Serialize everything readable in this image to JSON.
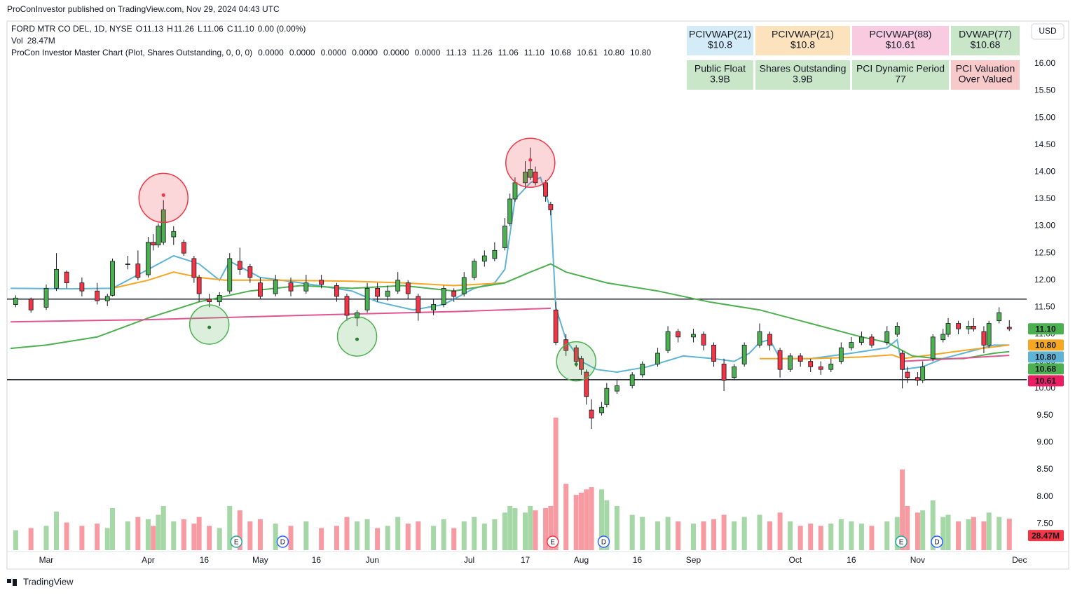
{
  "header": {
    "publisher": "ProConInvestor published on TradingView.com, Nov 29, 2024 04:43 UTC",
    "footer": "TradingView",
    "currency": "USD"
  },
  "legend": {
    "symbol": "FORD MTR CO DEL, 1D, NYSE",
    "ohlc": [
      {
        "key": "O",
        "value": "11.13"
      },
      {
        "key": "H",
        "value": "11.26"
      },
      {
        "key": "L",
        "value": "11.06"
      },
      {
        "key": "C",
        "value": "11.10"
      }
    ],
    "change": "0.00 (0.00%)",
    "vol_label": "Vol",
    "vol_value": "28.47M",
    "indicator": "ProCon Investor Master Chart (Plot, Shares Outstanding, 0, 0, 0)",
    "indicator_values": [
      {
        "text": "0.0000",
        "color": "#f2d23c"
      },
      {
        "text": "0.0000",
        "color": "#f5a623"
      },
      {
        "text": "0.0000",
        "color": "#f23645"
      },
      {
        "text": "0.0000",
        "color": "#f2d23c"
      },
      {
        "text": "0.0000",
        "color": "#f5a623"
      },
      {
        "text": "0.0000",
        "color": "#4caf50"
      },
      {
        "text": "11.13",
        "color": "#4caf50"
      },
      {
        "text": "11.26",
        "color": "#4caf50"
      },
      {
        "text": "11.06",
        "color": "#4caf50"
      },
      {
        "text": "11.10",
        "color": "#4caf50"
      },
      {
        "text": "10.68",
        "color": "#4caf50"
      },
      {
        "text": "10.61",
        "color": "#e91e63"
      },
      {
        "text": "10.80",
        "color": "#f5a623"
      },
      {
        "text": "10.80",
        "color": "#5fb4d6"
      }
    ]
  },
  "info_table": {
    "rows": [
      [
        {
          "title": "PCIVWAP(21)",
          "value": "$10.8",
          "color": "#d4ecf7"
        },
        {
          "title": "PCIVWAP(21)",
          "value": "$10.8",
          "color": "#fde3bd"
        },
        {
          "title": "PCIVWAP(88)",
          "value": "$10.61",
          "color": "#f8cbe0"
        },
        {
          "title": "DVWAP(77)",
          "value": "$10.68",
          "color": "#c9e6c9"
        }
      ],
      [
        {
          "title": "Public Float",
          "value": "3.9B",
          "color": "#c9e6c9"
        },
        {
          "title": "Shares Outstanding",
          "value": "3.9B",
          "color": "#c9e6c9"
        },
        {
          "title": "PCI Dynamic Period",
          "value": "77",
          "color": "#c9e6c9"
        },
        {
          "title": "PCI Valuation",
          "value": "Over Valued",
          "color": "#f8c9c9"
        }
      ]
    ]
  },
  "chart_data": {
    "type": "candlestick",
    "x": [
      -6,
      -3,
      0,
      2,
      4,
      7,
      10,
      12,
      13,
      16,
      18,
      20,
      21,
      22,
      23,
      25,
      27,
      29,
      30,
      32,
      34,
      36,
      38,
      40,
      42,
      45,
      48,
      51,
      54,
      57,
      59,
      61,
      63,
      65,
      67,
      69,
      71,
      73,
      76,
      78,
      80,
      82,
      84,
      86,
      88,
      90,
      91,
      92,
      94,
      95,
      96,
      98,
      99,
      100,
      102,
      104,
      105,
      106,
      107,
      109,
      110,
      112,
      115,
      117,
      120,
      122,
      124,
      127,
      129,
      131,
      133,
      135,
      137,
      140,
      142,
      144,
      146,
      148,
      150,
      152,
      154,
      156,
      158,
      160,
      162,
      165,
      167,
      168,
      169,
      171,
      172,
      174,
      176,
      177,
      179,
      181,
      182,
      184,
      185,
      187,
      189
    ],
    "open": [
      11.55,
      11.65,
      11.5,
      11.85,
      12.15,
      11.95,
      11.8,
      11.62,
      11.72,
      12.3,
      12.3,
      12.1,
      12.7,
      12.65,
      12.7,
      12.8,
      12.7,
      12.4,
      12.05,
      11.65,
      11.6,
      11.8,
      12.35,
      12.25,
      11.95,
      11.75,
      11.95,
      11.8,
      12.0,
      11.9,
      11.7,
      11.3,
      11.45,
      11.85,
      11.7,
      11.8,
      11.95,
      11.7,
      11.45,
      11.55,
      11.8,
      11.75,
      12.05,
      12.35,
      12.4,
      12.6,
      13.05,
      13.5,
      13.8,
      13.9,
      14.0,
      13.8,
      13.4,
      11.45,
      10.9,
      10.75,
      10.55,
      10.3,
      9.6,
      9.55,
      9.7,
      9.95,
      10.05,
      10.25,
      10.45,
      10.7,
      11.05,
      10.95,
      11.0,
      10.8,
      10.45,
      10.2,
      10.45,
      10.8,
      11.0,
      10.7,
      10.35,
      10.6,
      10.5,
      10.4,
      10.35,
      10.5,
      10.75,
      10.85,
      10.95,
      10.85,
      11.0,
      10.65,
      10.3,
      10.2,
      10.15,
      10.55,
      10.9,
      11.0,
      11.2,
      11.1,
      11.15,
      11.05,
      10.8,
      11.25,
      11.13
    ],
    "high": [
      11.72,
      11.68,
      11.92,
      12.5,
      12.18,
      12.05,
      11.95,
      11.75,
      12.4,
      12.45,
      12.55,
      12.8,
      12.85,
      13.05,
      13.48,
      13.0,
      12.75,
      12.45,
      12.1,
      11.75,
      11.78,
      12.5,
      12.6,
      12.3,
      12.05,
      12.1,
      12.05,
      12.1,
      12.1,
      11.95,
      11.75,
      11.45,
      11.95,
      11.95,
      11.9,
      12.15,
      12.0,
      11.75,
      11.65,
      11.9,
      11.85,
      12.15,
      12.4,
      12.55,
      12.7,
      13.15,
      13.6,
      13.9,
      14.2,
      14.45,
      14.1,
      13.85,
      13.45,
      11.6,
      11.0,
      10.8,
      10.6,
      10.35,
      9.8,
      9.75,
      10.1,
      10.15,
      10.3,
      10.5,
      10.75,
      11.15,
      11.1,
      11.1,
      11.05,
      10.85,
      10.55,
      10.45,
      10.85,
      11.2,
      11.05,
      10.75,
      10.65,
      10.65,
      10.55,
      10.5,
      10.55,
      10.85,
      10.95,
      11.05,
      11.0,
      11.15,
      11.22,
      10.7,
      10.4,
      10.3,
      10.5,
      11.0,
      11.1,
      11.3,
      11.25,
      11.25,
      11.3,
      11.15,
      11.25,
      11.5,
      11.26
    ],
    "low": [
      11.5,
      11.4,
      11.45,
      11.8,
      11.85,
      11.7,
      11.55,
      11.52,
      11.7,
      12.2,
      12.0,
      12.05,
      12.55,
      12.6,
      12.65,
      12.65,
      12.45,
      11.95,
      11.6,
      11.5,
      11.52,
      11.75,
      12.1,
      11.95,
      11.65,
      11.7,
      11.7,
      11.75,
      11.85,
      11.6,
      11.25,
      11.15,
      11.4,
      11.6,
      11.62,
      11.75,
      11.65,
      11.25,
      11.35,
      11.5,
      11.6,
      11.7,
      12.0,
      12.25,
      12.35,
      12.55,
      13.0,
      13.45,
      13.7,
      13.85,
      13.75,
      13.45,
      13.2,
      10.8,
      10.6,
      10.4,
      10.25,
      9.7,
      9.25,
      9.5,
      9.65,
      9.9,
      10.0,
      10.2,
      10.4,
      10.65,
      10.85,
      10.85,
      10.7,
      10.4,
      9.95,
      10.15,
      10.4,
      10.75,
      10.7,
      10.2,
      10.3,
      10.4,
      10.3,
      10.25,
      10.3,
      10.45,
      10.7,
      10.8,
      10.75,
      10.8,
      10.95,
      10.0,
      10.1,
      10.05,
      10.1,
      10.5,
      10.85,
      10.95,
      11.0,
      11.0,
      11.05,
      10.65,
      10.75,
      11.2,
      11.06
    ],
    "close": [
      11.67,
      11.45,
      11.85,
      12.2,
      11.95,
      11.8,
      11.62,
      11.7,
      12.35,
      12.3,
      12.05,
      12.7,
      12.65,
      13.0,
      13.3,
      12.9,
      12.5,
      12.05,
      11.75,
      11.6,
      11.72,
      12.4,
      12.2,
      12.05,
      11.7,
      12.0,
      11.8,
      11.95,
      11.92,
      11.7,
      11.35,
      11.4,
      11.85,
      11.7,
      11.8,
      12.0,
      11.75,
      11.4,
      11.55,
      11.85,
      11.7,
      12.05,
      12.35,
      12.45,
      12.55,
      13.0,
      13.5,
      13.8,
      14.0,
      14.05,
      13.8,
      13.55,
      13.3,
      10.85,
      10.7,
      10.5,
      10.35,
      9.85,
      9.45,
      9.65,
      10.0,
      10.05,
      10.25,
      10.45,
      10.65,
      11.05,
      10.95,
      11.0,
      10.8,
      10.5,
      10.15,
      10.4,
      10.8,
      11.05,
      10.8,
      10.35,
      10.6,
      10.5,
      10.4,
      10.35,
      10.45,
      10.75,
      10.85,
      10.95,
      10.8,
      11.05,
      11.15,
      10.35,
      10.2,
      10.15,
      10.4,
      10.95,
      11.0,
      11.2,
      11.1,
      11.15,
      11.1,
      10.8,
      11.2,
      11.4,
      11.1
    ],
    "volume": [
      18,
      20,
      22,
      35,
      25,
      22,
      24,
      20,
      38,
      26,
      30,
      28,
      22,
      32,
      40,
      26,
      28,
      24,
      30,
      22,
      20,
      40,
      36,
      26,
      28,
      24,
      22,
      26,
      20,
      22,
      30,
      26,
      28,
      20,
      22,
      30,
      24,
      26,
      22,
      28,
      20,
      26,
      30,
      24,
      28,
      34,
      40,
      38,
      34,
      40,
      36,
      38,
      40,
      120,
      60,
      50,
      52,
      55,
      57,
      55,
      45,
      40,
      32,
      30,
      26,
      30,
      26,
      24,
      26,
      28,
      32,
      26,
      30,
      32,
      26,
      34,
      26,
      22,
      24,
      22,
      24,
      28,
      26,
      24,
      22,
      26,
      30,
      73,
      40,
      34,
      36,
      45,
      30,
      32,
      26,
      28,
      30,
      26,
      34,
      30,
      28.47
    ],
    "xlim": [
      -7.7,
      192.4
    ],
    "ylim": [
      7.0,
      16.8
    ],
    "y2lim": [
      0,
      130
    ],
    "yticks": [
      {
        "value": 16,
        "label": "16.00"
      },
      {
        "value": 15.5,
        "label": "15.50"
      },
      {
        "value": 15,
        "label": "15.00"
      },
      {
        "value": 14.5,
        "label": "14.50"
      },
      {
        "value": 14,
        "label": "14.00"
      },
      {
        "value": 13.5,
        "label": "13.50"
      },
      {
        "value": 13,
        "label": "13.00"
      },
      {
        "value": 12.5,
        "label": "12.50"
      },
      {
        "value": 12,
        "label": "12.00"
      },
      {
        "value": 11.5,
        "label": "11.50"
      },
      {
        "value": 11,
        "label": "11.00"
      },
      {
        "value": 10.5,
        "label": "10.50"
      },
      {
        "value": 10,
        "label": "10.00"
      },
      {
        "value": 9.5,
        "label": "9.50"
      },
      {
        "value": 9,
        "label": "9.00"
      },
      {
        "value": 8.5,
        "label": "8.50"
      },
      {
        "value": 8,
        "label": "8.00"
      },
      {
        "value": 7.5,
        "label": "7.50"
      }
    ],
    "xticks": [
      {
        "value": 0,
        "label": "Mar"
      },
      {
        "value": 20,
        "label": "Apr"
      },
      {
        "value": 31,
        "label": "16"
      },
      {
        "value": 42,
        "label": "May"
      },
      {
        "value": 53,
        "label": "16"
      },
      {
        "value": 64,
        "label": "Jun"
      },
      {
        "value": 83,
        "label": "Jul"
      },
      {
        "value": 94,
        "label": "17"
      },
      {
        "value": 105,
        "label": "Aug"
      },
      {
        "value": 116,
        "label": "16"
      },
      {
        "value": 127,
        "label": "Sep"
      },
      {
        "value": 147,
        "label": "Oct"
      },
      {
        "value": 158,
        "label": "16"
      },
      {
        "value": 171,
        "label": "Nov"
      },
      {
        "value": 191,
        "label": "Dec"
      }
    ],
    "up_color": "#4caf50",
    "down_color": "#f23645",
    "series": [
      {
        "color": "#5fb4d6",
        "x": [
          -7,
          5,
          13,
          18,
          25,
          30,
          34,
          36,
          42,
          50,
          60,
          65,
          72,
          78,
          84,
          88,
          90,
          92,
          95,
          97,
          99,
          100,
          102,
          105,
          108,
          112,
          118,
          125,
          131,
          135,
          138,
          140,
          142,
          144,
          150,
          158,
          165,
          167,
          168,
          172,
          176,
          182,
          186,
          189
        ],
        "values": [
          11.85,
          11.84,
          11.85,
          12.1,
          12.45,
          12.3,
          12.0,
          12.35,
          12.05,
          11.95,
          11.8,
          11.6,
          11.45,
          11.55,
          11.85,
          11.95,
          12.2,
          13.5,
          13.8,
          13.9,
          13.3,
          11.5,
          10.9,
          10.5,
          10.35,
          10.3,
          10.4,
          10.6,
          10.55,
          10.5,
          10.65,
          10.85,
          10.9,
          10.55,
          10.55,
          10.65,
          10.75,
          10.9,
          10.35,
          10.4,
          10.55,
          10.7,
          10.8,
          10.8
        ]
      },
      {
        "color": "#f5a623",
        "x": [
          13,
          20,
          25,
          30,
          35,
          45,
          60,
          70,
          80,
          90,
          91,
          140,
          150,
          160,
          166,
          168,
          172,
          180,
          189
        ],
        "values": [
          11.85,
          12.0,
          12.15,
          12.05,
          12.0,
          12.0,
          11.98,
          11.95,
          11.9,
          11.95,
          null,
          10.55,
          10.55,
          10.58,
          10.62,
          10.55,
          10.6,
          10.7,
          10.8
        ]
      },
      {
        "color": "#4caf50",
        "x": [
          -7,
          0,
          10,
          20,
          30,
          40,
          50,
          60,
          70,
          80,
          90,
          95,
          99,
          102,
          110,
          120,
          130,
          140,
          150,
          160,
          165,
          170,
          175,
          180,
          186,
          189
        ],
        "values": [
          10.74,
          10.8,
          10.95,
          11.3,
          11.6,
          11.8,
          11.9,
          11.85,
          11.9,
          11.8,
          11.95,
          12.15,
          12.3,
          12.15,
          11.95,
          11.8,
          11.6,
          11.45,
          11.2,
          10.95,
          10.85,
          10.6,
          10.55,
          10.55,
          10.65,
          10.68
        ]
      },
      {
        "color": "#e05591",
        "x": [
          -7,
          20,
          50,
          80,
          99,
          100,
          168,
          180,
          189
        ],
        "values": [
          11.23,
          11.27,
          11.35,
          11.42,
          11.48,
          null,
          10.5,
          10.56,
          10.61
        ]
      }
    ],
    "hlines": [
      11.65,
      10.16
    ],
    "signals": [
      {
        "x": 23,
        "y": 13.52,
        "color": "#f23645"
      },
      {
        "x": 95,
        "y": 14.17,
        "color": "#f23645"
      },
      {
        "x": 32,
        "y": 11.18,
        "color": "#4caf50"
      },
      {
        "x": 61,
        "y": 10.96,
        "color": "#4caf50"
      },
      {
        "x": 104,
        "y": 10.5,
        "color": "#4caf50"
      }
    ],
    "events": [
      {
        "x": 37.3,
        "label": "E",
        "color": "#26a69a"
      },
      {
        "x": 46.4,
        "label": "D",
        "color": "#2962ff"
      },
      {
        "x": 99.4,
        "label": "E",
        "color": "#f23645"
      },
      {
        "x": 109.4,
        "label": "D",
        "color": "#2962ff"
      },
      {
        "x": 167.8,
        "label": "E",
        "color": "#26a69a"
      },
      {
        "x": 174.8,
        "label": "D",
        "color": "#2962ff"
      }
    ],
    "price_labels": [
      {
        "value": 11.1,
        "label": "11.10",
        "color": "#4caf50"
      },
      {
        "value": 10.8,
        "label": "10.80",
        "color": "#f5a623"
      },
      {
        "value": 10.8,
        "label": "10.80",
        "color": "#5fb4d6"
      },
      {
        "value": 10.68,
        "label": "10.68",
        "color": "#4caf50"
      },
      {
        "value": 10.61,
        "label": "10.61",
        "color": "#e91e63"
      }
    ],
    "volume_label": {
      "value": 28.47,
      "label": "28.47M",
      "color": "#f23645"
    }
  }
}
